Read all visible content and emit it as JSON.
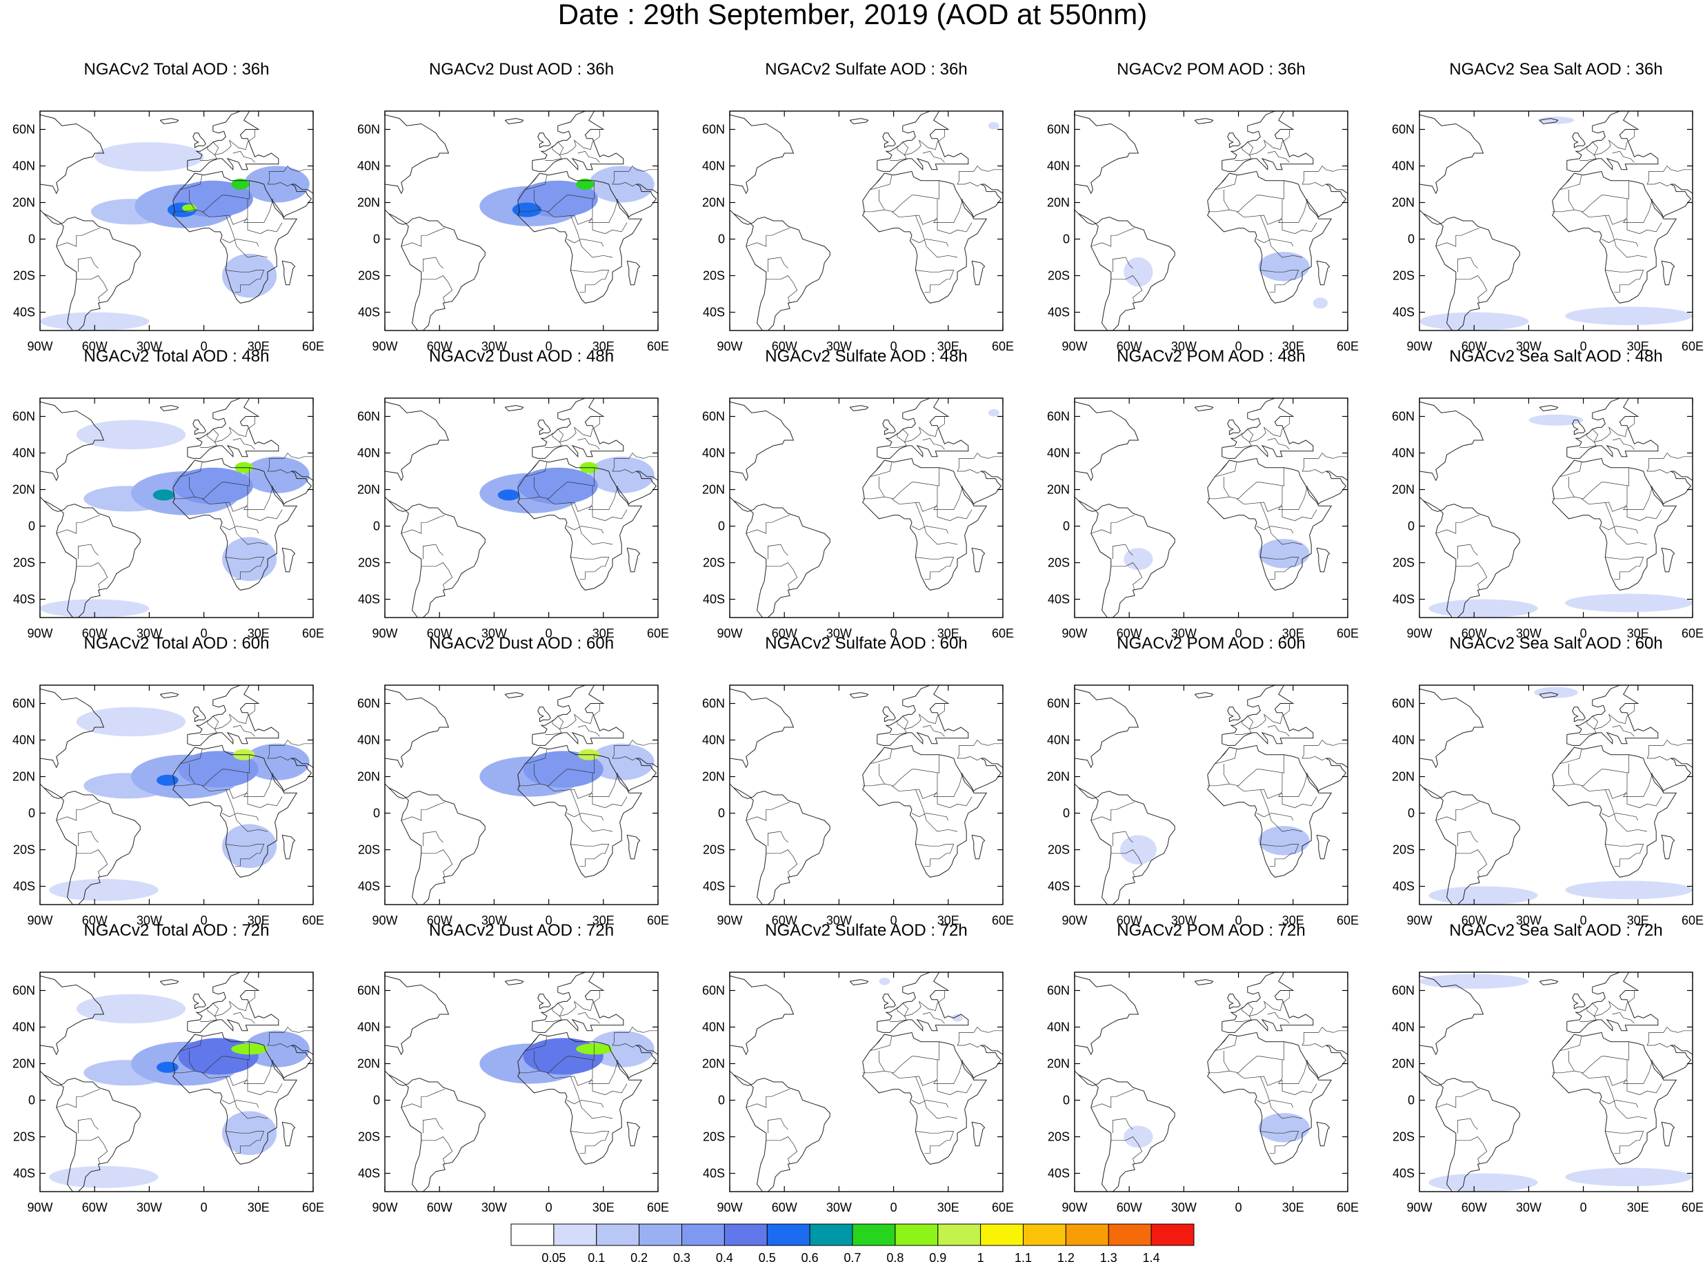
{
  "title": "Date : 29th September, 2019 (AOD at 550nm)",
  "variables": [
    {
      "key": "total",
      "label": "NGACv2 Total AOD"
    },
    {
      "key": "dust",
      "label": "NGACv2 Dust AOD"
    },
    {
      "key": "sulfate",
      "label": "NGACv2 Sulfate AOD"
    },
    {
      "key": "pom",
      "label": "NGACv2 POM AOD"
    },
    {
      "key": "seasalt",
      "label": "NGACv2 Sea Salt AOD"
    }
  ],
  "forecast_hours": [
    "36h",
    "48h",
    "60h",
    "72h"
  ],
  "panels": [
    {
      "title": "NGACv2 Total AOD : 36h"
    },
    {
      "title": "NGACv2 Dust AOD : 36h"
    },
    {
      "title": "NGACv2 Sulfate AOD : 36h"
    },
    {
      "title": "NGACv2 POM AOD : 36h"
    },
    {
      "title": "NGACv2 Sea Salt AOD : 36h"
    },
    {
      "title": "NGACv2 Total AOD : 48h"
    },
    {
      "title": "NGACv2 Dust AOD : 48h"
    },
    {
      "title": "NGACv2 Sulfate AOD : 48h"
    },
    {
      "title": "NGACv2 POM AOD : 48h"
    },
    {
      "title": "NGACv2 Sea Salt AOD : 48h"
    },
    {
      "title": "NGACv2 Total AOD : 60h"
    },
    {
      "title": "NGACv2 Dust AOD : 60h"
    },
    {
      "title": "NGACv2 Sulfate AOD : 60h"
    },
    {
      "title": "NGACv2 POM AOD : 60h"
    },
    {
      "title": "NGACv2 Sea Salt AOD : 60h"
    },
    {
      "title": "NGACv2 Total AOD : 72h"
    },
    {
      "title": "NGACv2 Dust AOD : 72h"
    },
    {
      "title": "NGACv2 Sulfate AOD : 72h"
    },
    {
      "title": "NGACv2 POM AOD : 72h"
    },
    {
      "title": "NGACv2 Sea Salt  AOD : 72h"
    }
  ],
  "map": {
    "lon_range": [
      -90,
      60
    ],
    "lat_range": [
      -50,
      70
    ],
    "lon_ticks": [
      {
        "value": -90,
        "label": "90W"
      },
      {
        "value": -60,
        "label": "60W"
      },
      {
        "value": -30,
        "label": "30W"
      },
      {
        "value": 0,
        "label": "0"
      },
      {
        "value": 30,
        "label": "30E"
      },
      {
        "value": 60,
        "label": "60E"
      }
    ],
    "lat_ticks": [
      {
        "value": 60,
        "label": "60N"
      },
      {
        "value": 40,
        "label": "40N"
      },
      {
        "value": 20,
        "label": "20N"
      },
      {
        "value": 0,
        "label": "0"
      },
      {
        "value": -20,
        "label": "20S"
      },
      {
        "value": -40,
        "label": "40S"
      }
    ]
  },
  "colorbar": {
    "colors": [
      "#ffffff",
      "#d4dcfa",
      "#b8c7f6",
      "#9bb0f3",
      "#7f99f0",
      "#6178eb",
      "#1c6cf1",
      "#0097a6",
      "#27d51e",
      "#8ef317",
      "#c3f24b",
      "#fbf304",
      "#fbc207",
      "#f99d07",
      "#f56b0a",
      "#f31a10"
    ],
    "labels": [
      "0.05",
      "0.1",
      "0.2",
      "0.3",
      "0.4",
      "0.5",
      "0.6",
      "0.7",
      "0.8",
      "0.9",
      "1",
      "1.1",
      "1.2",
      "1.3",
      "1.4"
    ]
  },
  "features": {
    "total": {
      "36h": [
        {
          "lon": -10,
          "lat": 18,
          "rx": 28,
          "ry": 12,
          "v": 0.22
        },
        {
          "lon": -40,
          "lat": 15,
          "rx": 22,
          "ry": 7,
          "v": 0.14
        },
        {
          "lon": 5,
          "lat": 22,
          "rx": 22,
          "ry": 10,
          "v": 0.38
        },
        {
          "lon": -12,
          "lat": 16,
          "rx": 8,
          "ry": 4,
          "v": 0.55
        },
        {
          "lon": 20,
          "lat": 30,
          "rx": 5,
          "ry": 3,
          "v": 0.75
        },
        {
          "lon": -8,
          "lat": 17,
          "rx": 4,
          "ry": 2,
          "v": 0.85
        },
        {
          "lon": 40,
          "lat": 30,
          "rx": 18,
          "ry": 10,
          "v": 0.2
        },
        {
          "lon": 25,
          "lat": -20,
          "rx": 15,
          "ry": 12,
          "v": 0.12
        },
        {
          "lon": -30,
          "lat": 45,
          "rx": 30,
          "ry": 8,
          "v": 0.08
        },
        {
          "lon": -60,
          "lat": -45,
          "rx": 30,
          "ry": 5,
          "v": 0.09
        }
      ],
      "48h": [
        {
          "lon": -10,
          "lat": 18,
          "rx": 30,
          "ry": 12,
          "v": 0.22
        },
        {
          "lon": -42,
          "lat": 15,
          "rx": 24,
          "ry": 7,
          "v": 0.14
        },
        {
          "lon": 5,
          "lat": 22,
          "rx": 22,
          "ry": 10,
          "v": 0.38
        },
        {
          "lon": -22,
          "lat": 17,
          "rx": 6,
          "ry": 3,
          "v": 0.6
        },
        {
          "lon": 22,
          "lat": 32,
          "rx": 5,
          "ry": 3,
          "v": 0.85
        },
        {
          "lon": 40,
          "lat": 28,
          "rx": 18,
          "ry": 10,
          "v": 0.2
        },
        {
          "lon": 25,
          "lat": -18,
          "rx": 15,
          "ry": 12,
          "v": 0.12
        },
        {
          "lon": -40,
          "lat": 50,
          "rx": 30,
          "ry": 8,
          "v": 0.08
        },
        {
          "lon": -60,
          "lat": -45,
          "rx": 30,
          "ry": 5,
          "v": 0.09
        }
      ],
      "60h": [
        {
          "lon": -10,
          "lat": 20,
          "rx": 30,
          "ry": 12,
          "v": 0.22
        },
        {
          "lon": -42,
          "lat": 15,
          "rx": 24,
          "ry": 7,
          "v": 0.14
        },
        {
          "lon": 8,
          "lat": 24,
          "rx": 22,
          "ry": 10,
          "v": 0.38
        },
        {
          "lon": -20,
          "lat": 18,
          "rx": 6,
          "ry": 3,
          "v": 0.55
        },
        {
          "lon": 22,
          "lat": 32,
          "rx": 6,
          "ry": 3,
          "v": 0.9
        },
        {
          "lon": 40,
          "lat": 28,
          "rx": 18,
          "ry": 10,
          "v": 0.2
        },
        {
          "lon": 25,
          "lat": -18,
          "rx": 15,
          "ry": 12,
          "v": 0.12
        },
        {
          "lon": -40,
          "lat": 50,
          "rx": 30,
          "ry": 8,
          "v": 0.08
        },
        {
          "lon": -55,
          "lat": -42,
          "rx": 30,
          "ry": 6,
          "v": 0.09
        }
      ],
      "72h": [
        {
          "lon": -10,
          "lat": 20,
          "rx": 30,
          "ry": 12,
          "v": 0.22
        },
        {
          "lon": -42,
          "lat": 15,
          "rx": 24,
          "ry": 7,
          "v": 0.14
        },
        {
          "lon": 8,
          "lat": 24,
          "rx": 22,
          "ry": 10,
          "v": 0.4
        },
        {
          "lon": -20,
          "lat": 18,
          "rx": 6,
          "ry": 3,
          "v": 0.55
        },
        {
          "lon": 25,
          "lat": 28,
          "rx": 10,
          "ry": 3,
          "v": 0.8
        },
        {
          "lon": 40,
          "lat": 28,
          "rx": 18,
          "ry": 10,
          "v": 0.2
        },
        {
          "lon": 25,
          "lat": -18,
          "rx": 15,
          "ry": 12,
          "v": 0.12
        },
        {
          "lon": -40,
          "lat": 50,
          "rx": 30,
          "ry": 8,
          "v": 0.08
        },
        {
          "lon": -55,
          "lat": -42,
          "rx": 30,
          "ry": 6,
          "v": 0.09
        }
      ]
    },
    "dust": {
      "36h": [
        {
          "lon": -10,
          "lat": 18,
          "rx": 28,
          "ry": 11,
          "v": 0.2
        },
        {
          "lon": 5,
          "lat": 22,
          "rx": 22,
          "ry": 10,
          "v": 0.36
        },
        {
          "lon": -12,
          "lat": 16,
          "rx": 8,
          "ry": 4,
          "v": 0.55
        },
        {
          "lon": 20,
          "lat": 30,
          "rx": 5,
          "ry": 3,
          "v": 0.75
        },
        {
          "lon": 40,
          "lat": 30,
          "rx": 18,
          "ry": 10,
          "v": 0.18
        }
      ],
      "48h": [
        {
          "lon": -10,
          "lat": 18,
          "rx": 28,
          "ry": 11,
          "v": 0.2
        },
        {
          "lon": 5,
          "lat": 22,
          "rx": 22,
          "ry": 10,
          "v": 0.36
        },
        {
          "lon": -22,
          "lat": 17,
          "rx": 6,
          "ry": 3,
          "v": 0.55
        },
        {
          "lon": 22,
          "lat": 32,
          "rx": 5,
          "ry": 3,
          "v": 0.85
        },
        {
          "lon": 40,
          "lat": 28,
          "rx": 18,
          "ry": 10,
          "v": 0.18
        }
      ],
      "60h": [
        {
          "lon": -10,
          "lat": 20,
          "rx": 28,
          "ry": 11,
          "v": 0.2
        },
        {
          "lon": 8,
          "lat": 24,
          "rx": 22,
          "ry": 10,
          "v": 0.36
        },
        {
          "lon": 22,
          "lat": 32,
          "rx": 6,
          "ry": 3,
          "v": 0.9
        },
        {
          "lon": 40,
          "lat": 28,
          "rx": 18,
          "ry": 10,
          "v": 0.18
        }
      ],
      "72h": [
        {
          "lon": -10,
          "lat": 20,
          "rx": 28,
          "ry": 11,
          "v": 0.2
        },
        {
          "lon": 8,
          "lat": 24,
          "rx": 22,
          "ry": 10,
          "v": 0.4
        },
        {
          "lon": 25,
          "lat": 28,
          "rx": 10,
          "ry": 3,
          "v": 0.8
        },
        {
          "lon": 40,
          "lat": 28,
          "rx": 18,
          "ry": 10,
          "v": 0.18
        }
      ]
    },
    "sulfate": {
      "36h": [
        {
          "lon": 55,
          "lat": 62,
          "rx": 3,
          "ry": 2,
          "v": 0.07
        }
      ],
      "48h": [
        {
          "lon": 55,
          "lat": 62,
          "rx": 3,
          "ry": 2,
          "v": 0.07
        }
      ],
      "60h": [],
      "72h": [
        {
          "lon": -5,
          "lat": 65,
          "rx": 3,
          "ry": 2,
          "v": 0.07
        },
        {
          "lon": 35,
          "lat": 45,
          "rx": 3,
          "ry": 2,
          "v": 0.07
        }
      ]
    },
    "pom": {
      "36h": [
        {
          "lon": 25,
          "lat": -15,
          "rx": 14,
          "ry": 8,
          "v": 0.11
        },
        {
          "lon": -55,
          "lat": -18,
          "rx": 8,
          "ry": 8,
          "v": 0.07
        },
        {
          "lon": 45,
          "lat": -35,
          "rx": 4,
          "ry": 3,
          "v": 0.07
        }
      ],
      "48h": [
        {
          "lon": 25,
          "lat": -15,
          "rx": 14,
          "ry": 8,
          "v": 0.11
        },
        {
          "lon": -55,
          "lat": -18,
          "rx": 8,
          "ry": 6,
          "v": 0.07
        }
      ],
      "60h": [
        {
          "lon": 25,
          "lat": -15,
          "rx": 14,
          "ry": 8,
          "v": 0.11
        },
        {
          "lon": -55,
          "lat": -20,
          "rx": 10,
          "ry": 8,
          "v": 0.07
        }
      ],
      "72h": [
        {
          "lon": 25,
          "lat": -15,
          "rx": 14,
          "ry": 8,
          "v": 0.11
        },
        {
          "lon": -55,
          "lat": -20,
          "rx": 8,
          "ry": 6,
          "v": 0.07
        }
      ]
    },
    "seasalt": {
      "36h": [
        {
          "lon": -60,
          "lat": -45,
          "rx": 30,
          "ry": 5,
          "v": 0.09
        },
        {
          "lon": 25,
          "lat": -42,
          "rx": 35,
          "ry": 5,
          "v": 0.08
        },
        {
          "lon": -15,
          "lat": 65,
          "rx": 10,
          "ry": 2,
          "v": 0.08
        }
      ],
      "48h": [
        {
          "lon": -55,
          "lat": -45,
          "rx": 30,
          "ry": 5,
          "v": 0.09
        },
        {
          "lon": 25,
          "lat": -42,
          "rx": 35,
          "ry": 5,
          "v": 0.08
        },
        {
          "lon": -15,
          "lat": 58,
          "rx": 15,
          "ry": 3,
          "v": 0.08
        }
      ],
      "60h": [
        {
          "lon": -55,
          "lat": -45,
          "rx": 30,
          "ry": 5,
          "v": 0.09
        },
        {
          "lon": 25,
          "lat": -42,
          "rx": 35,
          "ry": 5,
          "v": 0.08
        },
        {
          "lon": -15,
          "lat": 66,
          "rx": 12,
          "ry": 3,
          "v": 0.08
        }
      ],
      "72h": [
        {
          "lon": -55,
          "lat": -45,
          "rx": 30,
          "ry": 5,
          "v": 0.09
        },
        {
          "lon": 25,
          "lat": -42,
          "rx": 35,
          "ry": 5,
          "v": 0.08
        },
        {
          "lon": -60,
          "lat": 65,
          "rx": 30,
          "ry": 4,
          "v": 0.08
        }
      ]
    }
  }
}
